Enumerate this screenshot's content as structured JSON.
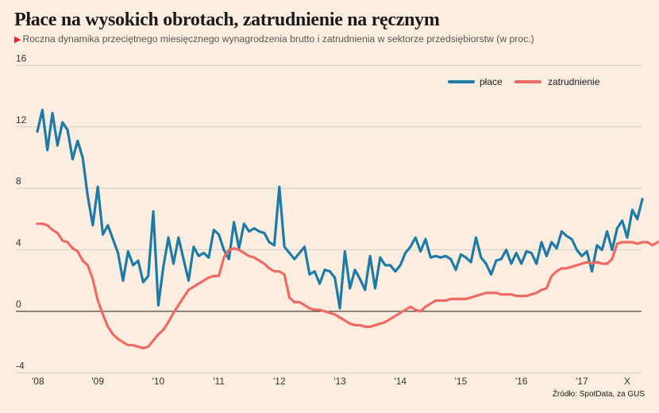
{
  "title": "Płace na wysokich obrotach, zatrudnienie na ręcznym",
  "subtitle": "Roczna dynamika przeciętnego miesięcznego wynagrodzenia brutto i zatrudnienia w sektorze przedsiębiorstw (w proc.)",
  "source": "Źródło: SpotData, za GUS",
  "colors": {
    "placa": "#1e7aa6",
    "zatrudnienie": "#ee6a62",
    "zero": "#1a1a1a",
    "grid": "#c8c8c8"
  },
  "chart_data": {
    "type": "line",
    "x_tick_labels": [
      "'08",
      "'09",
      "'10",
      "'11",
      "'12",
      "'13",
      "'14",
      "'15",
      "'16",
      "'17",
      "X"
    ],
    "y_ticks": [
      -4,
      0,
      4,
      8,
      12,
      16
    ],
    "ylim": [
      -4,
      16
    ],
    "x_range": [
      "2008-01",
      "2017-10"
    ],
    "legend_position": "top-right",
    "series": [
      {
        "name": "płace",
        "color": "#1e7aa6",
        "start": "2008-01",
        "values": [
          11.7,
          13.1,
          10.5,
          12.9,
          10.8,
          12.3,
          11.8,
          9.9,
          11.1,
          10.0,
          7.5,
          5.6,
          8.1,
          5.0,
          5.6,
          4.7,
          3.8,
          2.0,
          3.9,
          3.0,
          3.3,
          1.9,
          2.3,
          6.5,
          0.4,
          2.9,
          4.8,
          3.1,
          4.8,
          3.4,
          2.0,
          4.2,
          3.6,
          3.8,
          3.5,
          5.3,
          5.0,
          4.0,
          3.4,
          5.8,
          4.1,
          5.7,
          5.2,
          5.4,
          5.2,
          5.1,
          4.5,
          4.3,
          8.1,
          4.2,
          3.8,
          3.4,
          3.8,
          4.2,
          2.4,
          2.6,
          1.8,
          2.7,
          2.6,
          2.2,
          0.2,
          3.9,
          1.5,
          2.7,
          2.1,
          1.4,
          3.6,
          1.5,
          3.5,
          3.0,
          3.0,
          2.6,
          3.0,
          3.8,
          4.2,
          4.8,
          3.9,
          4.7,
          3.5,
          3.6,
          3.5,
          3.6,
          3.4,
          2.7,
          3.7,
          3.5,
          3.2,
          4.8,
          3.5,
          3.1,
          2.4,
          3.3,
          3.4,
          4.0,
          3.1,
          3.8,
          3.1,
          3.9,
          3.8,
          3.1,
          4.5,
          3.6,
          4.5,
          4.1,
          5.2,
          4.9,
          4.7,
          4.0,
          3.6,
          3.9,
          2.6,
          4.3,
          4.0,
          5.2,
          4.0,
          5.4,
          5.9,
          4.8,
          6.6,
          6.0,
          7.3
        ]
      },
      {
        "name": "zatrudnienie",
        "color": "#ee6a62",
        "start": "2008-01",
        "values": [
          5.7,
          5.7,
          5.6,
          5.3,
          5.1,
          4.6,
          4.5,
          4.1,
          3.9,
          3.3,
          3.0,
          2.1,
          0.7,
          -0.2,
          -1.0,
          -1.5,
          -1.8,
          -2.0,
          -2.2,
          -2.2,
          -2.3,
          -2.4,
          -2.3,
          -1.9,
          -1.5,
          -1.2,
          -0.7,
          -0.1,
          0.4,
          0.9,
          1.4,
          1.6,
          1.8,
          2.0,
          2.2,
          2.3,
          2.3,
          3.5,
          4.0,
          4.1,
          4.0,
          3.8,
          3.6,
          3.5,
          3.3,
          3.1,
          2.8,
          2.6,
          2.6,
          2.4,
          0.9,
          0.6,
          0.6,
          0.4,
          0.2,
          0.1,
          0.1,
          0.0,
          -0.1,
          -0.2,
          -0.4,
          -0.6,
          -0.8,
          -0.9,
          -0.9,
          -1.0,
          -1.0,
          -0.9,
          -0.8,
          -0.7,
          -0.5,
          -0.3,
          -0.1,
          0.1,
          0.3,
          0.1,
          0.0,
          0.3,
          0.5,
          0.7,
          0.7,
          0.7,
          0.8,
          0.8,
          0.8,
          0.8,
          0.9,
          1.0,
          1.1,
          1.2,
          1.2,
          1.2,
          1.1,
          1.1,
          1.1,
          1.0,
          1.0,
          1.0,
          1.1,
          1.2,
          1.4,
          1.5,
          2.3,
          2.6,
          2.8,
          2.8,
          2.9,
          3.0,
          3.1,
          3.2,
          3.1,
          3.2,
          3.1,
          3.1,
          3.4,
          4.4,
          4.5,
          4.5,
          4.5,
          4.4,
          4.5,
          4.5,
          4.3,
          4.5,
          4.5,
          4.4
        ]
      }
    ]
  }
}
